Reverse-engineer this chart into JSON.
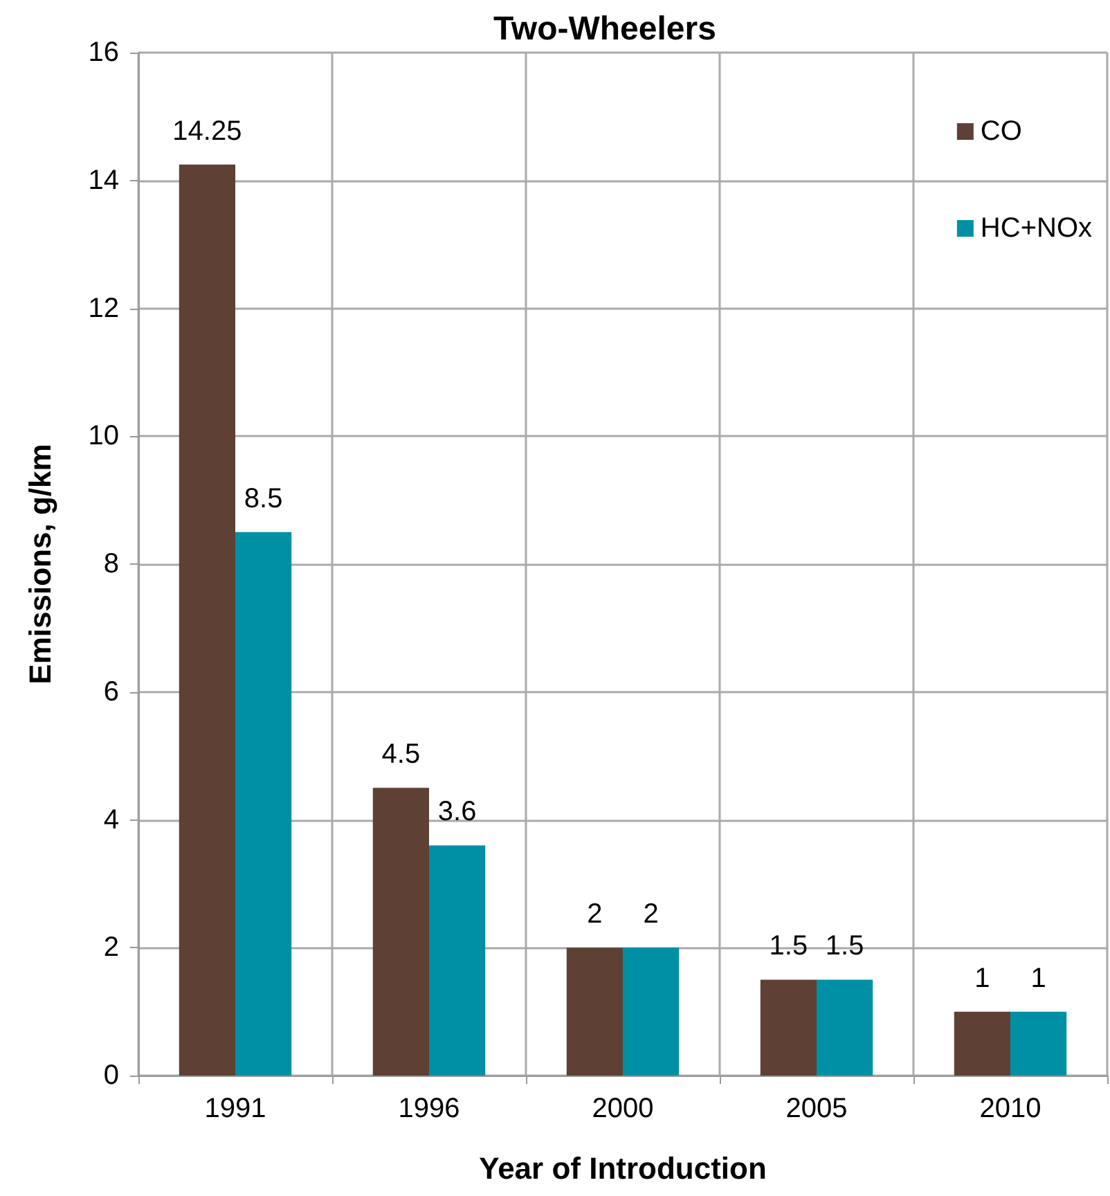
{
  "chart_data": {
    "type": "bar",
    "title": "Two-Wheelers",
    "xlabel": "Year of Introduction",
    "ylabel": "Emissions, g/km",
    "categories": [
      "1991",
      "1996",
      "2000",
      "2005",
      "2010"
    ],
    "series": [
      {
        "name": "CO",
        "color": "#5e4035",
        "values": [
          14.25,
          4.5,
          2,
          1.5,
          1
        ]
      },
      {
        "name": "HC+NOx",
        "color": "#0090a6",
        "values": [
          8.5,
          3.6,
          2,
          1.5,
          1
        ]
      }
    ],
    "ylim": [
      0,
      16
    ],
    "yticks": [
      0,
      2,
      4,
      6,
      8,
      10,
      12,
      14,
      16
    ],
    "grid": true,
    "legend": "top right",
    "data_labels": true
  }
}
